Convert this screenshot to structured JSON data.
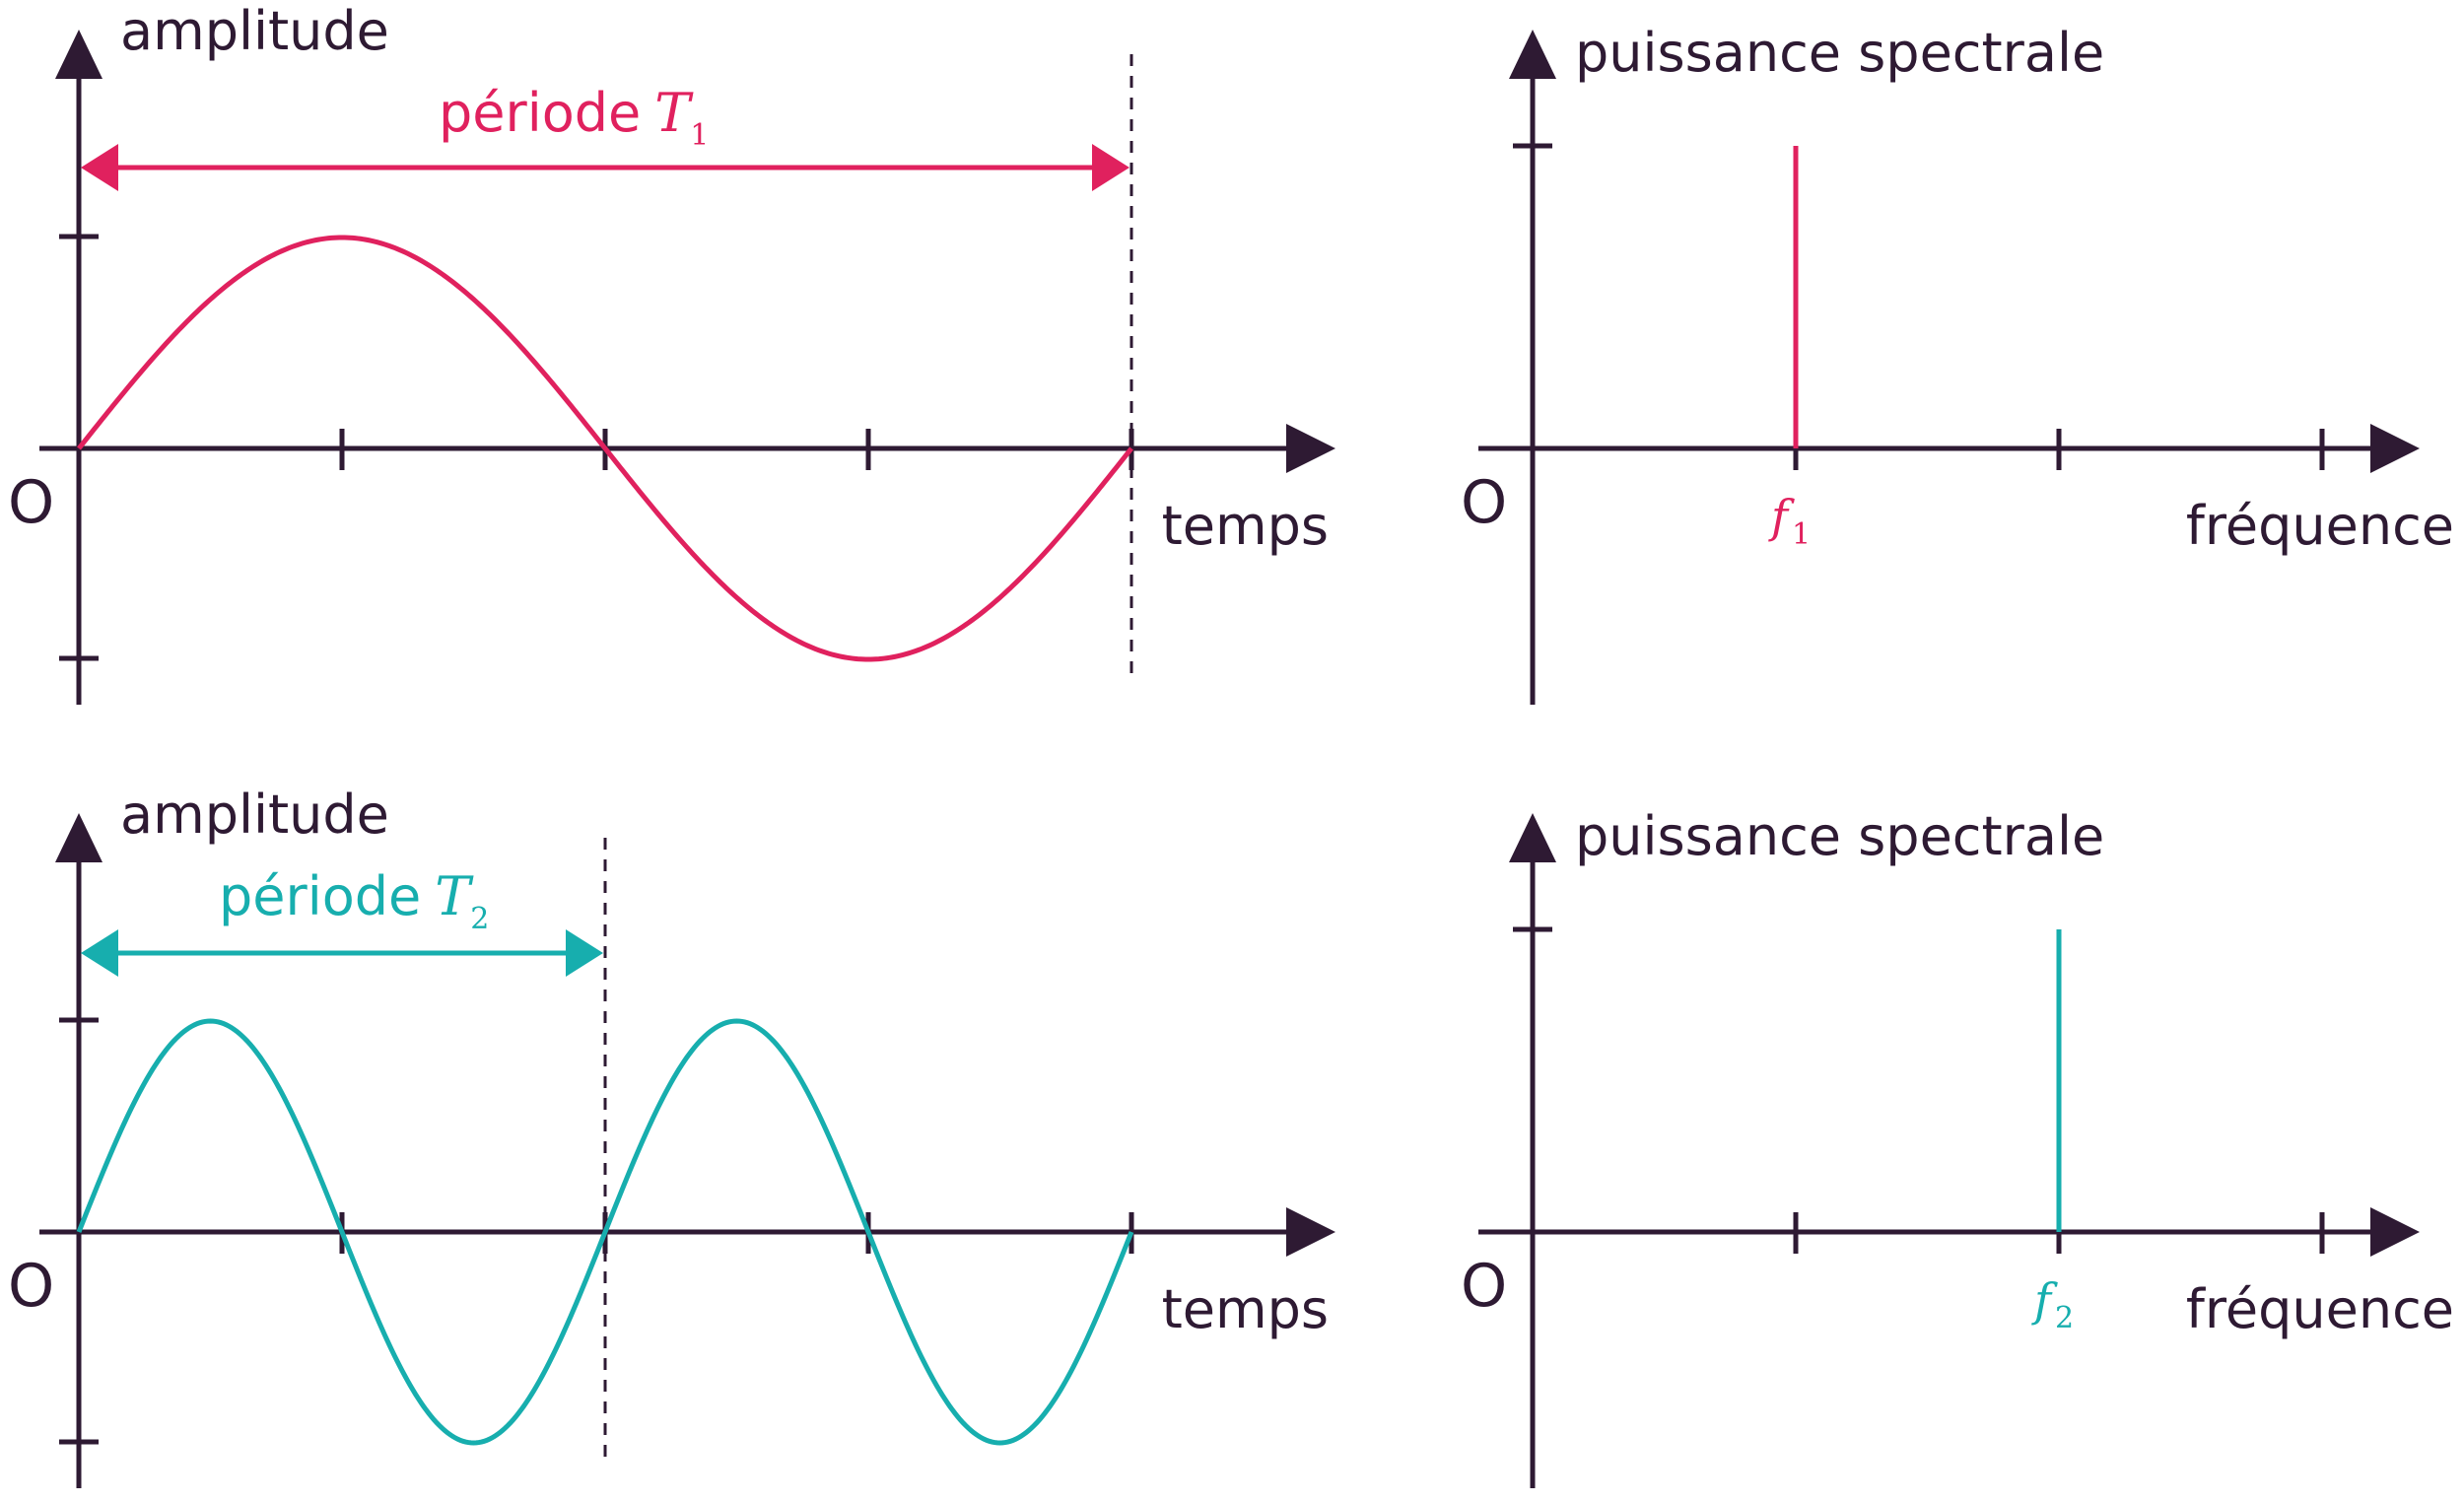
{
  "colors": {
    "axis": "#2e1a33",
    "wave1": "#e0215e",
    "wave2": "#17aeae"
  },
  "panels": {
    "wave1": {
      "ylabel": "amplitude",
      "xlabel": "temps",
      "origin": "O",
      "period_text": "période",
      "period_symbol": "T",
      "period_sub": "1",
      "periods_shown": 1
    },
    "spectrum1": {
      "ylabel": "puissance spectrale",
      "xlabel": "fréquence",
      "origin": "O",
      "freq_symbol": "f",
      "freq_sub": "1",
      "peak_tick_index": 1
    },
    "wave2": {
      "ylabel": "amplitude",
      "xlabel": "temps",
      "origin": "O",
      "period_text": "période",
      "period_symbol": "T",
      "period_sub": "2",
      "periods_shown": 2
    },
    "spectrum2": {
      "ylabel": "puissance spectrale",
      "xlabel": "fréquence",
      "origin": "O",
      "freq_symbol": "f",
      "freq_sub": "2",
      "peak_tick_index": 2
    }
  }
}
